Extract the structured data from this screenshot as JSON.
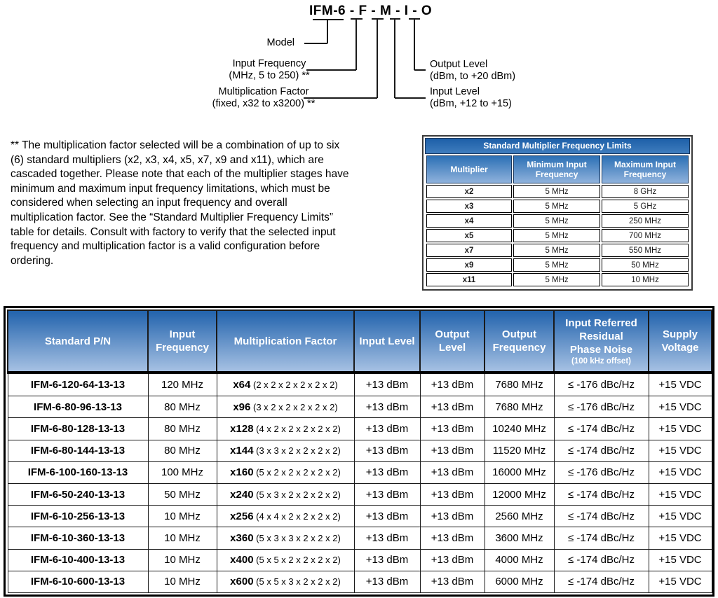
{
  "diagram": {
    "title": "IFM-6 - F - M - I - O",
    "labels": {
      "model": "Model",
      "input_frequency": [
        "Input Frequency",
        "(MHz, 5 to 250) **"
      ],
      "multiplication_factor": [
        "Multiplication Factor",
        "(fixed, x32 to x3200) **"
      ],
      "output_level": [
        "Output Level",
        "(dBm, to +20 dBm)"
      ],
      "input_level": [
        "Input Level",
        "(dBm, +12 to +15)"
      ]
    }
  },
  "note": "** The multiplication factor selected will be a combination of up to six (6) standard multipliers (x2, x3, x4, x5, x7, x9 and x11), which are cascaded together.  Please note that each of the multiplier stages have minimum and maximum input frequency limitations, which must be considered when selecting an input frequency and overall multiplication factor. See the “Standard Multiplier Frequency Limits” table for details. Consult with factory to verify that the selected input frequency and multiplication factor is a valid configuration before ordering.",
  "multiplier_table": {
    "title": "Standard Multiplier Frequency Limits",
    "columns": [
      "Multiplier",
      "Minimum Input Frequency",
      "Maximum Input Frequency"
    ],
    "rows": [
      [
        "x2",
        "5 MHz",
        "8 GHz"
      ],
      [
        "x3",
        "5 MHz",
        "5 GHz"
      ],
      [
        "x4",
        "5 MHz",
        "250 MHz"
      ],
      [
        "x5",
        "5 MHz",
        "700 MHz"
      ],
      [
        "x7",
        "5 MHz",
        "550 MHz"
      ],
      [
        "x9",
        "5 MHz",
        "50 MHz"
      ],
      [
        "x11",
        "5 MHz",
        "10 MHz"
      ]
    ]
  },
  "parts_table": {
    "columns": {
      "pn": "Standard P/N",
      "input_frequency": "Input Frequency",
      "multiplication_factor": "Multiplication Factor",
      "input_level": "Input Level",
      "output_level": "Output Level",
      "output_frequency": "Output Frequency",
      "phase_noise_lines": [
        "Input Referred",
        "Residual",
        "Phase Noise"
      ],
      "phase_noise_sub": "(100 kHz offset)",
      "supply_voltage": "Supply Voltage"
    },
    "rows": [
      {
        "pn": "IFM-6-120-64-13-13",
        "input_frequency": "120 MHz",
        "mult": "x64",
        "mult_detail": "(2 x 2 x 2 x 2 x 2 x 2)",
        "input_level": "+13 dBm",
        "output_level": "+13 dBm",
        "output_frequency": "7680 MHz",
        "phase_noise": "≤ -176 dBc/Hz",
        "supply_voltage": "+15 VDC"
      },
      {
        "pn": "IFM-6-80-96-13-13",
        "input_frequency": "80 MHz",
        "mult": "x96",
        "mult_detail": "(3 x 2 x 2 x 2 x 2 x 2)",
        "input_level": "+13 dBm",
        "output_level": "+13 dBm",
        "output_frequency": "7680 MHz",
        "phase_noise": "≤ -176 dBc/Hz",
        "supply_voltage": "+15 VDC"
      },
      {
        "pn": "IFM-6-80-128-13-13",
        "input_frequency": "80 MHz",
        "mult": "x128",
        "mult_detail": "(4 x 2 x 2 x 2 x 2 x 2)",
        "input_level": "+13 dBm",
        "output_level": "+13 dBm",
        "output_frequency": "10240 MHz",
        "phase_noise": "≤ -174 dBc/Hz",
        "supply_voltage": "+15 VDC"
      },
      {
        "pn": "IFM-6-80-144-13-13",
        "input_frequency": "80 MHz",
        "mult": "x144",
        "mult_detail": "(3 x 3 x 2 x 2 x 2 x 2)",
        "input_level": "+13 dBm",
        "output_level": "+13 dBm",
        "output_frequency": "11520 MHz",
        "phase_noise": "≤ -174 dBc/Hz",
        "supply_voltage": "+15 VDC"
      },
      {
        "pn": "IFM-6-100-160-13-13",
        "input_frequency": "100 MHz",
        "mult": "x160",
        "mult_detail": "(5 x 2 x 2 x 2 x 2 x 2)",
        "input_level": "+13 dBm",
        "output_level": "+13 dBm",
        "output_frequency": "16000 MHz",
        "phase_noise": "≤ -176 dBc/Hz",
        "supply_voltage": "+15 VDC"
      },
      {
        "pn": "IFM-6-50-240-13-13",
        "input_frequency": "50 MHz",
        "mult": "x240",
        "mult_detail": "(5 x 3 x 2 x 2 x 2 x 2)",
        "input_level": "+13 dBm",
        "output_level": "+13 dBm",
        "output_frequency": "12000 MHz",
        "phase_noise": "≤ -174 dBc/Hz",
        "supply_voltage": "+15 VDC"
      },
      {
        "pn": "IFM-6-10-256-13-13",
        "input_frequency": "10 MHz",
        "mult": "x256",
        "mult_detail": "(4 x 4 x 2 x 2 x 2 x 2)",
        "input_level": "+13 dBm",
        "output_level": "+13 dBm",
        "output_frequency": "2560 MHz",
        "phase_noise": "≤ -174 dBc/Hz",
        "supply_voltage": "+15 VDC"
      },
      {
        "pn": "IFM-6-10-360-13-13",
        "input_frequency": "10 MHz",
        "mult": "x360",
        "mult_detail": "(5 x 3 x 3 x 2 x 2 x 2)",
        "input_level": "+13 dBm",
        "output_level": "+13 dBm",
        "output_frequency": "3600 MHz",
        "phase_noise": "≤ -174 dBc/Hz",
        "supply_voltage": "+15 VDC"
      },
      {
        "pn": "IFM-6-10-400-13-13",
        "input_frequency": "10 MHz",
        "mult": "x400",
        "mult_detail": "(5 x 5 x 2 x 2 x 2 x 2)",
        "input_level": "+13 dBm",
        "output_level": "+13 dBm",
        "output_frequency": "4000 MHz",
        "phase_noise": "≤ -174 dBc/Hz",
        "supply_voltage": "+15 VDC"
      },
      {
        "pn": "IFM-6-10-600-13-13",
        "input_frequency": "10 MHz",
        "mult": "x600",
        "mult_detail": "(5 x 5 x 3 x 2 x 2 x 2)",
        "input_level": "+13 dBm",
        "output_level": "+13 dBm",
        "output_frequency": "6000 MHz",
        "phase_noise": "≤ -174 dBc/Hz",
        "supply_voltage": "+15 VDC"
      }
    ]
  },
  "colors": {
    "header_gradient_top": "#2263ad",
    "header_gradient_bottom": "#a6c1e3",
    "title_bar_blue": "#2e74b5",
    "border_black": "#000000",
    "header_text": "#ffffff"
  }
}
